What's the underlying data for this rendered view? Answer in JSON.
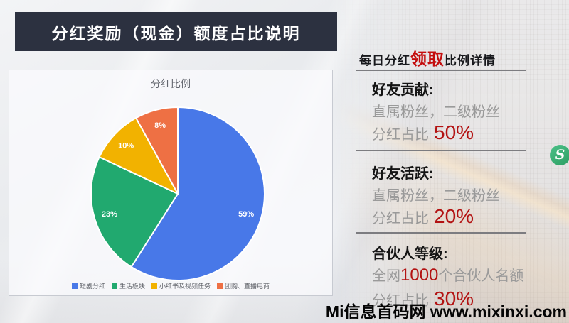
{
  "banner": {
    "title": "分红奖励（现金）额度占比说明"
  },
  "chart_data": {
    "type": "pie",
    "title": "分红比例",
    "labels": [
      "短剧分红",
      "生活板块",
      "小红书及视频任务",
      "团购、直播电商"
    ],
    "values": [
      59,
      23,
      10,
      8
    ],
    "slice_labels": [
      "59%",
      "23%",
      "10%",
      "8%"
    ],
    "colors": [
      "#4878e8",
      "#21a96f",
      "#f2b200",
      "#ee7044"
    ],
    "unit": "%",
    "legend_position": "bottom"
  },
  "panel": {
    "header": {
      "pre": "每日分红",
      "highlight": "领取",
      "post": "比例详情"
    },
    "sections": [
      {
        "title": "好友贡献:",
        "line1_pre": "直属粉丝，二级粉丝",
        "line1_red": "",
        "line1_post": "",
        "ratio_label": "分红占比",
        "ratio_value": "50%"
      },
      {
        "title": "好友活跃:",
        "line1_pre": "直属粉丝，二级粉丝",
        "line1_red": "",
        "line1_post": "",
        "ratio_label": "分红占比",
        "ratio_value": "20%"
      },
      {
        "title": "合伙人等级:",
        "line1_pre": "全网",
        "line1_red": "1000",
        "line1_post": "个合伙人名额",
        "ratio_label": "分红占比",
        "ratio_value": "30%"
      }
    ]
  },
  "logo": {
    "letter": "S"
  },
  "watermark": {
    "text": "Mi信息首码网 www.mixinxi.com"
  },
  "colors": {
    "banner_bg": "#2c3140",
    "accent_red": "#b31212",
    "body_gray": "#9a9a9a"
  }
}
